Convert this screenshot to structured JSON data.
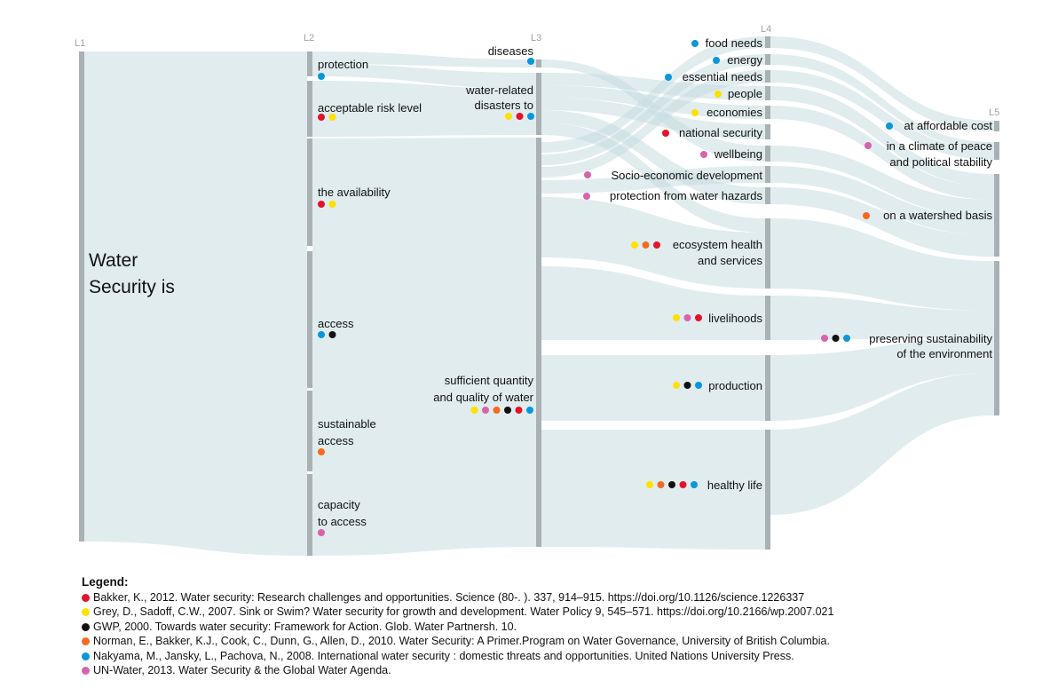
{
  "colors": {
    "Bakker": "#e2132a",
    "Grey": "#ffe100",
    "GWP": "#111111",
    "Norman": "#f26b21",
    "Nakyama": "#0a97d9",
    "UNWater": "#d863ac",
    "node_bar": "#a9b1b5",
    "flow": "#dcebec"
  },
  "levels": {
    "l1": "L1",
    "l2": "L2",
    "l3": "L3",
    "l4": "L4",
    "l5": "L5"
  },
  "nodes": {
    "water_security": {
      "line1": "Water",
      "line2": "Security is"
    },
    "protection": {
      "label": "protection",
      "dots": [
        "Nakyama"
      ]
    },
    "acceptable_risk": {
      "label": "acceptable risk level",
      "dots": [
        "Bakker",
        "Grey"
      ]
    },
    "availability": {
      "label": "the availability",
      "dots": [
        "Bakker",
        "Grey"
      ]
    },
    "access": {
      "label": "access",
      "dots": [
        "Nakyama",
        "GWP"
      ]
    },
    "sustainable_access": {
      "line1": "sustainable",
      "line2": "access",
      "dots": [
        "Norman"
      ]
    },
    "capacity": {
      "line1": "capacity",
      "line2": "to access",
      "dots": [
        "UNWater"
      ]
    },
    "diseases": {
      "label": "diseases",
      "dots": [
        "Nakyama"
      ]
    },
    "water_disasters": {
      "line1": "water-related",
      "line2": "disasters to",
      "dots": [
        "Grey",
        "Bakker",
        "Nakyama"
      ]
    },
    "sufficient": {
      "line1": "sufficient quantity",
      "line2": "and quality of water",
      "dots": [
        "Grey",
        "UNWater",
        "Norman",
        "GWP",
        "Bakker",
        "Nakyama"
      ]
    },
    "food_needs": {
      "label": "food needs",
      "dots": [
        "Nakyama"
      ]
    },
    "energy": {
      "label": "energy",
      "dots": [
        "Nakyama"
      ]
    },
    "essential_needs": {
      "label": "essential needs",
      "dots": [
        "Nakyama"
      ]
    },
    "people": {
      "label": "people",
      "dots": [
        "Grey"
      ]
    },
    "economies": {
      "label": "economies",
      "dots": [
        "Grey"
      ]
    },
    "national_security": {
      "label": "national security",
      "dots": [
        "Bakker"
      ]
    },
    "wellbeing": {
      "label": "wellbeing",
      "dots": [
        "UNWater"
      ]
    },
    "socio_economic": {
      "label": "Socio-economic development",
      "dots": [
        "UNWater"
      ]
    },
    "protection_hazards": {
      "label": "protection from water hazards",
      "dots": [
        "UNWater"
      ]
    },
    "ecosystem": {
      "line1": "ecosystem health",
      "line2": "and services",
      "dots": [
        "Grey",
        "Norman",
        "Bakker"
      ]
    },
    "livelihoods": {
      "label": "livelihoods",
      "dots": [
        "Grey",
        "UNWater",
        "Bakker"
      ]
    },
    "production": {
      "label": "production",
      "dots": [
        "Grey",
        "GWP",
        "Nakyama"
      ]
    },
    "healthy_life": {
      "label": "healthy life",
      "dots": [
        "Grey",
        "Norman",
        "GWP",
        "Bakker",
        "Nakyama"
      ]
    },
    "affordable": {
      "label": "at affordable cost",
      "dots": [
        "Nakyama"
      ]
    },
    "peace": {
      "line1": "in a climate of peace",
      "line2": "and political stability",
      "dots": [
        "UNWater"
      ]
    },
    "watershed": {
      "label": "on a watershed basis",
      "dots": [
        "Norman"
      ]
    },
    "sustainability": {
      "line1": "preserving sustainability",
      "line2": "of the environment",
      "dots": [
        "UNWater",
        "GWP",
        "Nakyama"
      ]
    }
  },
  "legend": {
    "title": "Legend:",
    "items": [
      {
        "key": "Bakker",
        "text": "Bakker, K., 2012. Water security: Research challenges and opportunities. Science (80-. ). 337, 914–915. https://doi.org/10.1126/science.1226337"
      },
      {
        "key": "Grey",
        "text": "Grey, D., Sadoff, C.W., 2007. Sink or Swim? Water security for growth and development. Water Policy 9, 545–571. https://doi.org/10.2166/wp.2007.021"
      },
      {
        "key": "GWP",
        "text": "GWP, 2000. Towards water security: Framework for Action. Glob. Water Partnersh. 10."
      },
      {
        "key": "Norman",
        "text": "Norman, E., Bakker, K.J., Cook, C., Dunn, G., Allen, D., 2010. Water Security: A Primer.Program on Water Governance, University of British Columbia."
      },
      {
        "key": "Nakyama",
        "text": "Nakyama, M., Jansky, L., Pachova, N., 2008. International water security : domestic threats and opportunities. United Nations University Press."
      },
      {
        "key": "UNWater",
        "text": "UN-Water, 2013. Water Security & the Global Water Agenda."
      }
    ]
  }
}
